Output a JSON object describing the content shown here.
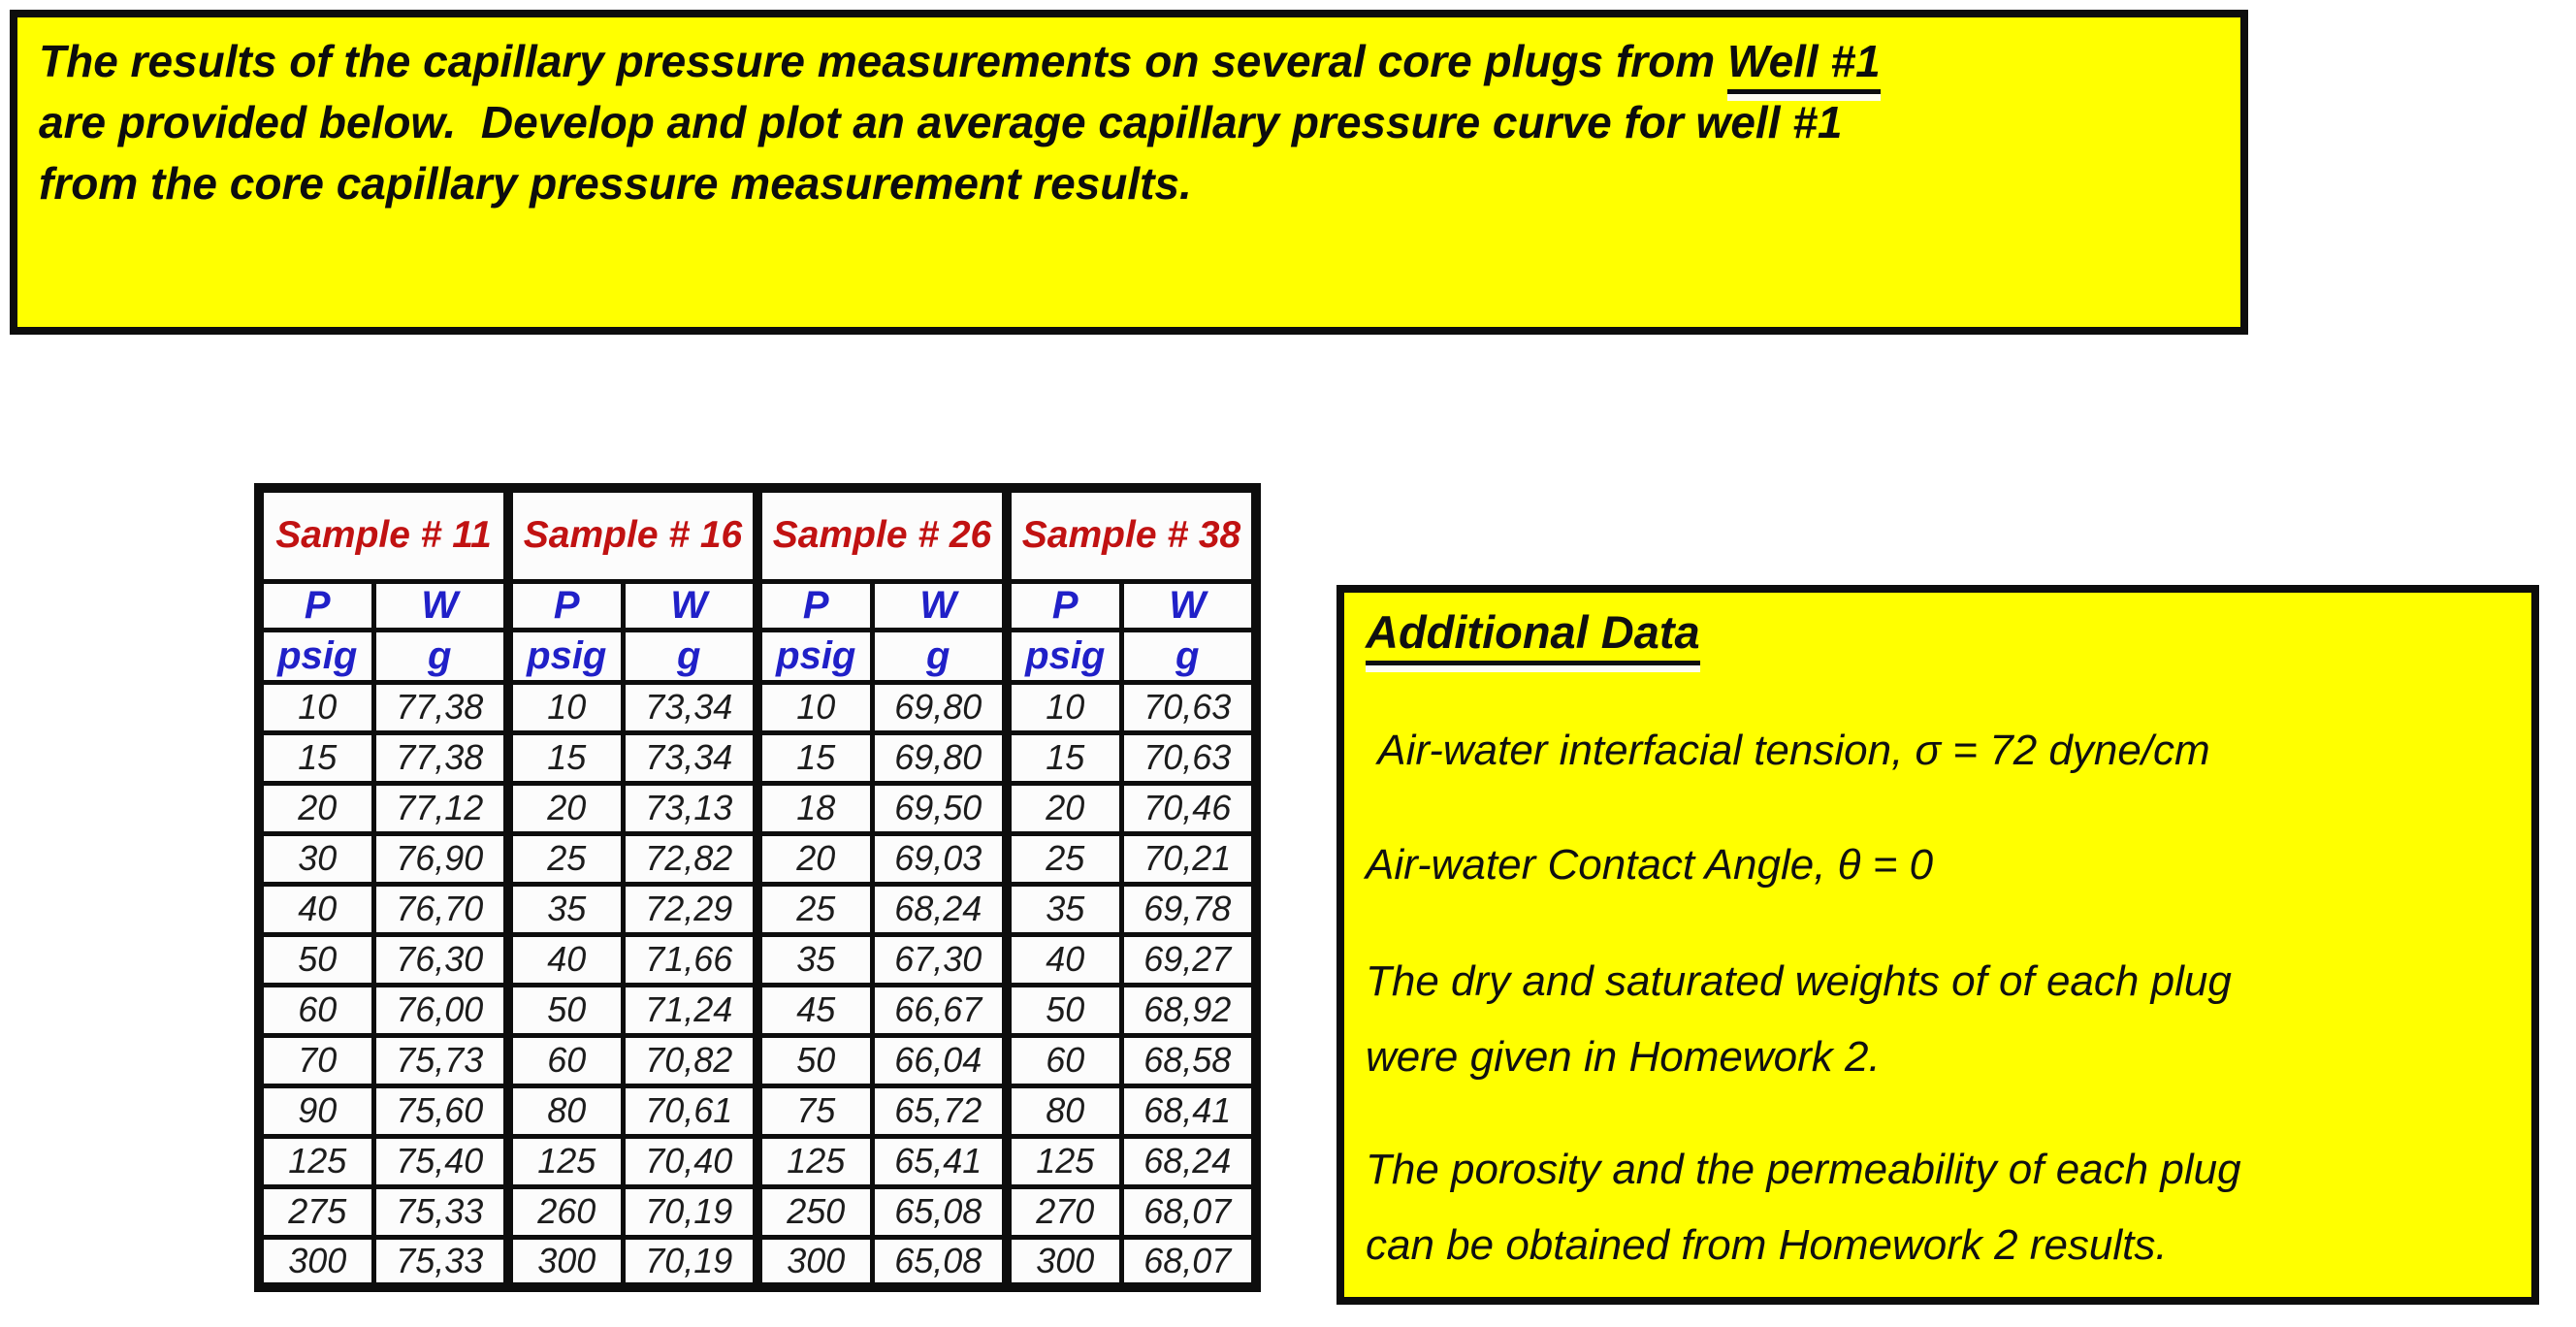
{
  "banner": {
    "line1_prefix": "The results of the capillary pressure measurements on several core plugs from ",
    "well_ref": "Well #1",
    "rest": "\nare provided below.  Develop and plot an average capillary pressure curve for well #1\nfrom the core capillary pressure measurement results."
  },
  "table": {
    "samples": [
      "Sample # 11",
      "Sample # 16",
      "Sample # 26",
      "Sample # 38"
    ],
    "quantity_headers": [
      "P",
      "W"
    ],
    "unit_headers": [
      "psig",
      "g"
    ],
    "rows": [
      [
        "10",
        "77,38",
        "10",
        "73,34",
        "10",
        "69,80",
        "10",
        "70,63"
      ],
      [
        "15",
        "77,38",
        "15",
        "73,34",
        "15",
        "69,80",
        "15",
        "70,63"
      ],
      [
        "20",
        "77,12",
        "20",
        "73,13",
        "18",
        "69,50",
        "20",
        "70,46"
      ],
      [
        "30",
        "76,90",
        "25",
        "72,82",
        "20",
        "69,03",
        "25",
        "70,21"
      ],
      [
        "40",
        "76,70",
        "35",
        "72,29",
        "25",
        "68,24",
        "35",
        "69,78"
      ],
      [
        "50",
        "76,30",
        "40",
        "71,66",
        "35",
        "67,30",
        "40",
        "69,27"
      ],
      [
        "60",
        "76,00",
        "50",
        "71,24",
        "45",
        "66,67",
        "50",
        "68,92"
      ],
      [
        "70",
        "75,73",
        "60",
        "70,82",
        "50",
        "66,04",
        "60",
        "68,58"
      ],
      [
        "90",
        "75,60",
        "80",
        "70,61",
        "75",
        "65,72",
        "80",
        "68,41"
      ],
      [
        "125",
        "75,40",
        "125",
        "70,40",
        "125",
        "65,41",
        "125",
        "68,24"
      ],
      [
        "275",
        "75,33",
        "260",
        "70,19",
        "250",
        "65,08",
        "270",
        "68,07"
      ],
      [
        "300",
        "75,33",
        "300",
        "70,19",
        "300",
        "65,08",
        "300",
        "68,07"
      ]
    ]
  },
  "additional": {
    "title": "Additional Data",
    "items": [
      " Air-water interfacial tension, σ = 72 dyne/cm",
      "Air-water Contact Angle, θ = 0",
      "The dry and saturated weights of of each plug\nwere given in Homework 2.",
      "The porosity and the permeability of each plug\ncan be obtained from Homework 2 results."
    ]
  },
  "colors": {
    "highlight": "#FFFF00",
    "border": "#0d0d0d",
    "sample_label": "#C11212",
    "column_label": "#2020C8",
    "underline_glow": "#FFFDF0"
  }
}
